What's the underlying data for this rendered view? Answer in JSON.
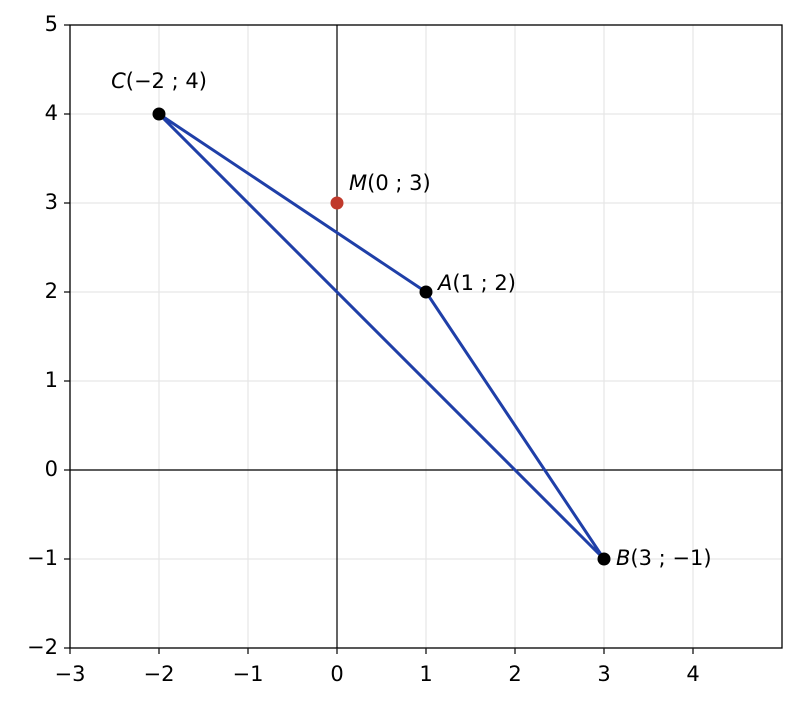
{
  "chart_data": {
    "type": "scatter",
    "xlim": [
      -3,
      5
    ],
    "ylim": [
      -2,
      5
    ],
    "xticks": [
      {
        "value": -3,
        "label": "−3"
      },
      {
        "value": -2,
        "label": "−2"
      },
      {
        "value": -1,
        "label": "−1"
      },
      0,
      1,
      2,
      3,
      4
    ],
    "yticks": [
      {
        "value": -2,
        "label": "−2"
      },
      {
        "value": -1,
        "label": "−1"
      },
      0,
      1,
      2,
      3,
      4,
      5
    ],
    "grid": true,
    "polygon": {
      "color": "#1f3fa8",
      "x": [
        1,
        3,
        -2,
        1
      ],
      "y": [
        2,
        -1,
        4,
        2
      ]
    },
    "points": [
      {
        "name": "A",
        "coords": "(1 ; 2)",
        "x": 1,
        "y": 2,
        "color": "#000000"
      },
      {
        "name": "B",
        "coords": "(3 ; −1)",
        "x": 3,
        "y": -1,
        "color": "#000000"
      },
      {
        "name": "C",
        "coords": "(−2 ; 4)",
        "x": -2,
        "y": 4,
        "color": "#000000"
      },
      {
        "name": "M",
        "coords": "(0 ; 3)",
        "x": 0,
        "y": 3,
        "color": "#c0392b"
      }
    ]
  }
}
